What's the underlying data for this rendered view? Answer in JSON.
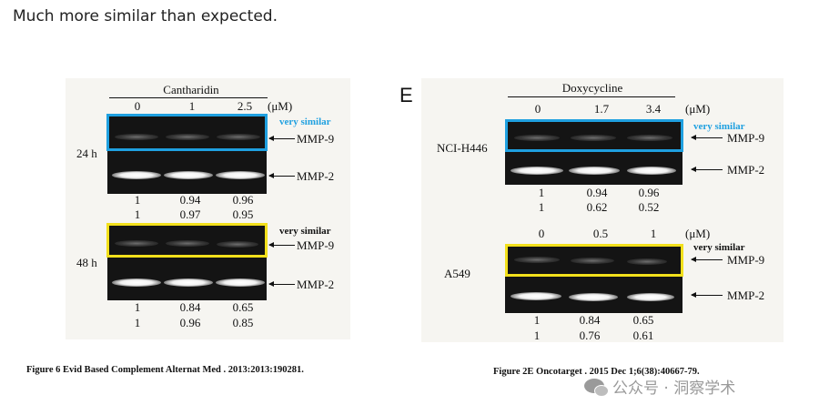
{
  "post": {
    "heading": "Much more similar than expected."
  },
  "left_figure": {
    "treatment": "Cantharidin",
    "doses": [
      "0",
      "1",
      "2.5"
    ],
    "unit": "(μM)",
    "rows": [
      {
        "label": "24 h",
        "note": "very similar",
        "bands": [
          "MMP-9",
          "MMP-2"
        ],
        "values": [
          [
            "1",
            "0.94",
            "0.96"
          ],
          [
            "1",
            "0.97",
            "0.95"
          ]
        ]
      },
      {
        "label": "48 h",
        "note": "very similar",
        "bands": [
          "MMP-9",
          "MMP-2"
        ],
        "values": [
          [
            "1",
            "0.84",
            "0.65"
          ],
          [
            "1",
            "0.96",
            "0.85"
          ]
        ]
      }
    ],
    "caption": "Figure 6 Evid Based Complement Alternat Med . 2013:2013:190281.",
    "highlight_colors": {
      "top": "#1fa0e0",
      "bottom": "#f2e01c"
    }
  },
  "right_figure": {
    "panel_letter": "E",
    "treatment": "Doxycycline",
    "rows": [
      {
        "label": "NCI-H446",
        "doses": [
          "0",
          "1.7",
          "3.4"
        ],
        "unit": "(μM)",
        "note": "very similar",
        "bands": [
          "MMP-9",
          "MMP-2"
        ],
        "values": [
          [
            "1",
            "0.94",
            "0.96"
          ],
          [
            "1",
            "0.62",
            "0.52"
          ]
        ]
      },
      {
        "label": "A549",
        "doses": [
          "0",
          "0.5",
          "1"
        ],
        "unit": "(μM)",
        "note": "very similar",
        "bands": [
          "MMP-9",
          "MMP-2"
        ],
        "values": [
          [
            "1",
            "0.84",
            "0.65"
          ],
          [
            "1",
            "0.76",
            "0.61"
          ]
        ]
      }
    ],
    "caption": "Figure 2E Oncotarget . 2015 Dec 1;6(38):40667-79.",
    "highlight_colors": {
      "top": "#1fa0e0",
      "bottom": "#f2e01c"
    }
  },
  "watermark": {
    "text": "公众号 · 洞察学术",
    "icon": "wechat-icon"
  }
}
